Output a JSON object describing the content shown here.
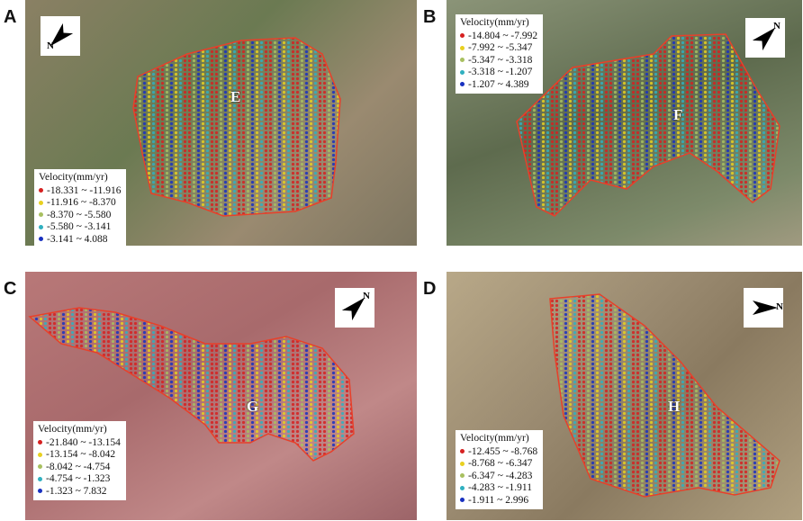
{
  "panels": [
    {
      "label": "A",
      "site": "E",
      "north": "N",
      "legend": {
        "title": "Velocity(mm/yr)",
        "rows": [
          "-18.331 ~ -11.916",
          "-11.916 ~ -8.370",
          "-8.370 ~ -5.580",
          "-5.580 ~ -3.141",
          "-3.141 ~ 4.088"
        ]
      }
    },
    {
      "label": "B",
      "site": "F",
      "north": "N",
      "legend": {
        "title": "Velocity(mm/yr)",
        "rows": [
          "-14.804 ~ -7.992",
          "-7.992 ~ -5.347",
          "-5.347 ~ -3.318",
          "-3.318 ~ -1.207",
          "-1.207 ~ 4.389"
        ]
      }
    },
    {
      "label": "C",
      "site": "G",
      "north": "N",
      "legend": {
        "title": "Velocity(mm/yr)",
        "rows": [
          "-21.840 ~ -13.154",
          "-13.154 ~ -8.042",
          "-8.042 ~ -4.754",
          "-4.754 ~ -1.323",
          "-1.323 ~ 7.832"
        ]
      }
    },
    {
      "label": "D",
      "site": "H",
      "north": "N",
      "legend": {
        "title": "Velocity(mm/yr)",
        "rows": [
          "-12.455 ~ -8.768",
          "-8.768 ~ -6.347",
          "-6.347 ~ -4.283",
          "-4.283 ~ -1.911",
          "-1.911 ~ 2.996"
        ]
      }
    }
  ]
}
